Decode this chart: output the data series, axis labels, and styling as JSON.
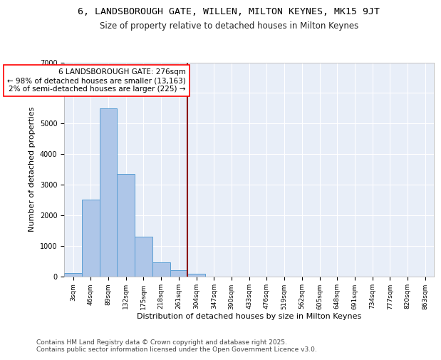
{
  "title1": "6, LANDSBOROUGH GATE, WILLEN, MILTON KEYNES, MK15 9JT",
  "title2": "Size of property relative to detached houses in Milton Keynes",
  "xlabel": "Distribution of detached houses by size in Milton Keynes",
  "ylabel": "Number of detached properties",
  "footer": "Contains HM Land Registry data © Crown copyright and database right 2025.\nContains public sector information licensed under the Open Government Licence v3.0.",
  "categories": [
    "3sqm",
    "46sqm",
    "89sqm",
    "132sqm",
    "175sqm",
    "218sqm",
    "261sqm",
    "304sqm",
    "347sqm",
    "390sqm",
    "433sqm",
    "476sqm",
    "519sqm",
    "562sqm",
    "605sqm",
    "648sqm",
    "691sqm",
    "734sqm",
    "777sqm",
    "820sqm",
    "863sqm"
  ],
  "values": [
    100,
    2500,
    5500,
    3350,
    1300,
    450,
    200,
    90,
    0,
    0,
    0,
    0,
    0,
    0,
    0,
    0,
    0,
    0,
    0,
    0,
    0
  ],
  "bar_color": "#aec6e8",
  "bar_edge_color": "#5a9fd4",
  "vline_x_index": 7,
  "vline_color": "#8B0000",
  "annotation_text": "6 LANDSBOROUGH GATE: 276sqm\n← 98% of detached houses are smaller (13,163)\n2% of semi-detached houses are larger (225) →",
  "annotation_box_color": "white",
  "annotation_box_edge_color": "red",
  "ylim": [
    0,
    7000
  ],
  "yticks": [
    0,
    1000,
    2000,
    3000,
    4000,
    5000,
    6000,
    7000
  ],
  "bg_color": "#e8eef8",
  "grid_color": "white",
  "title_fontsize": 9.5,
  "subtitle_fontsize": 8.5,
  "annotation_fontsize": 7.5,
  "axis_label_fontsize": 8,
  "tick_fontsize": 6.5,
  "footer_fontsize": 6.5
}
